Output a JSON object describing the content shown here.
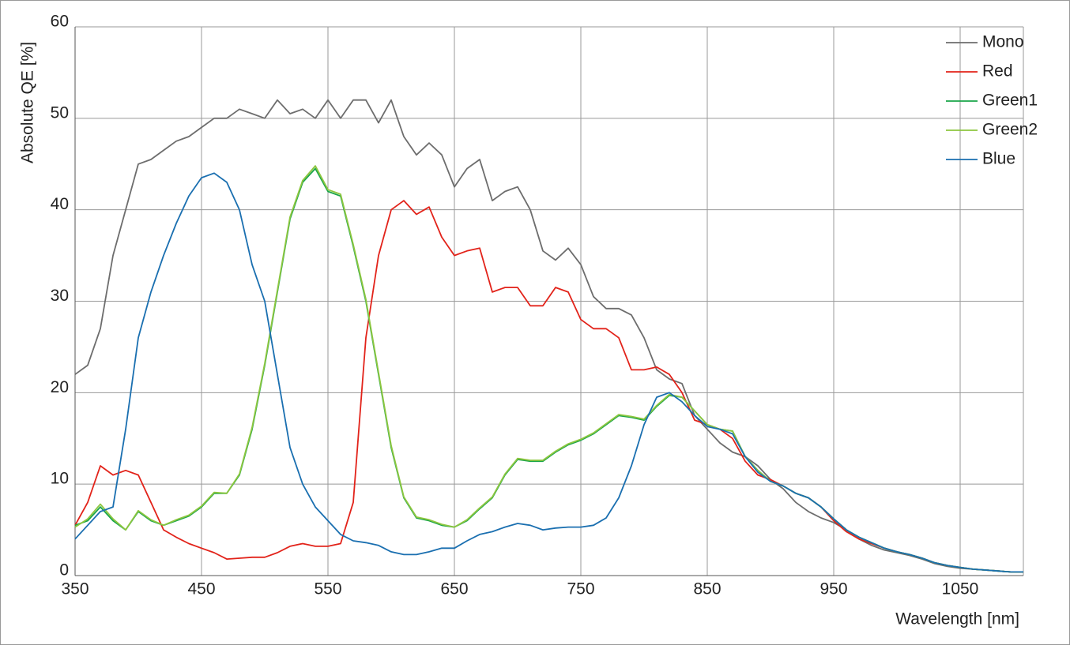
{
  "chart_data": {
    "type": "line",
    "y_label": "Absolute QE [%]",
    "x_label": "Wavelength [nm]",
    "x": [
      350,
      360,
      370,
      380,
      390,
      400,
      410,
      420,
      430,
      440,
      450,
      460,
      470,
      480,
      490,
      500,
      510,
      520,
      530,
      540,
      550,
      560,
      570,
      580,
      590,
      600,
      610,
      620,
      630,
      640,
      650,
      660,
      670,
      680,
      690,
      700,
      710,
      720,
      730,
      740,
      750,
      760,
      770,
      780,
      790,
      800,
      810,
      820,
      830,
      840,
      850,
      860,
      870,
      880,
      890,
      900,
      910,
      920,
      930,
      940,
      950,
      960,
      970,
      980,
      990,
      1000,
      1010,
      1020,
      1030,
      1040,
      1050,
      1060,
      1070,
      1080,
      1090,
      1100
    ],
    "series": [
      {
        "name": "Mono",
        "color": "#6d6d6d",
        "values": [
          22,
          23,
          27,
          35,
          40,
          45,
          45.5,
          46.5,
          47.5,
          48,
          49,
          50,
          50,
          51,
          50.5,
          50,
          52,
          50.5,
          51,
          50,
          52,
          50,
          52,
          52,
          49.5,
          52,
          48,
          46,
          47.3,
          46,
          42.5,
          44.5,
          45.5,
          41,
          42,
          42.5,
          40,
          35.5,
          34.5,
          35.8,
          34,
          30.5,
          29.2,
          29.2,
          28.5,
          26,
          22.5,
          21.5,
          21,
          17.5,
          16,
          14.5,
          13.5,
          13,
          12,
          10.5,
          9.5,
          8,
          7,
          6.3,
          5.8,
          5,
          4,
          3.3,
          2.8,
          2.5,
          2.2,
          1.8,
          1.3,
          1,
          0.8,
          0.7,
          0.6,
          0.5,
          0.4,
          0.4
        ]
      },
      {
        "name": "Red",
        "color": "#e2231a",
        "values": [
          5.5,
          8,
          12,
          11,
          11.5,
          11,
          8,
          5,
          4.2,
          3.5,
          3,
          2.5,
          1.8,
          1.9,
          2,
          2,
          2.5,
          3.2,
          3.5,
          3.2,
          3.2,
          3.5,
          8,
          26,
          35,
          40,
          41,
          39.5,
          40.3,
          37,
          35,
          35.5,
          35.8,
          31,
          31.5,
          31.5,
          29.5,
          29.5,
          31.5,
          31,
          28,
          27,
          27,
          26,
          22.5,
          22.5,
          22.8,
          22,
          20,
          17,
          16.5,
          16,
          15,
          12.5,
          11,
          10.5,
          9.8,
          9,
          8.5,
          7.5,
          6,
          4.8,
          4,
          3.5,
          3,
          2.6,
          2.3,
          1.9,
          1.4,
          1.1,
          0.9,
          0.7,
          0.6,
          0.5,
          0.4,
          0.4
        ]
      },
      {
        "name": "Green1",
        "color": "#1aa54a",
        "values": [
          5.5,
          6,
          7.5,
          6,
          5,
          7,
          6,
          5.5,
          6,
          6.5,
          7.5,
          9,
          9,
          11,
          16,
          23,
          31,
          39,
          43,
          44.5,
          42,
          41.5,
          36,
          30,
          22,
          14,
          8.5,
          6.3,
          6,
          5.5,
          5.3,
          6,
          7.3,
          8.5,
          11,
          12.7,
          12.5,
          12.5,
          13.5,
          14.3,
          14.8,
          15.5,
          16.5,
          17.5,
          17.3,
          17,
          18.5,
          19.7,
          19.5,
          18,
          16.5,
          16,
          15.8,
          13,
          11.5,
          10.3,
          9.8,
          9,
          8.5,
          7.5,
          6.2,
          5,
          4.2,
          3.6,
          3,
          2.6,
          2.3,
          1.9,
          1.4,
          1.1,
          0.9,
          0.7,
          0.6,
          0.5,
          0.4,
          0.4
        ]
      },
      {
        "name": "Green2",
        "color": "#8dc63f",
        "values": [
          5.3,
          6.2,
          7.8,
          6.2,
          5,
          7.1,
          6.1,
          5.5,
          6.1,
          6.6,
          7.6,
          9.1,
          9,
          11.1,
          16.2,
          23.2,
          31.2,
          39.2,
          43.2,
          44.8,
          42.2,
          41.7,
          36.2,
          30.2,
          22.2,
          14.2,
          8.6,
          6.4,
          6.1,
          5.6,
          5.3,
          6.1,
          7.4,
          8.6,
          11.1,
          12.8,
          12.6,
          12.6,
          13.6,
          14.4,
          14.9,
          15.6,
          16.6,
          17.6,
          17.4,
          17.1,
          18.6,
          19.8,
          19.5,
          18,
          16.5,
          16,
          15.8,
          13,
          11.5,
          10.3,
          9.8,
          9,
          8.5,
          7.5,
          6.2,
          5,
          4.2,
          3.6,
          3,
          2.6,
          2.3,
          1.9,
          1.4,
          1.1,
          0.9,
          0.7,
          0.6,
          0.5,
          0.4,
          0.4
        ]
      },
      {
        "name": "Blue",
        "color": "#1a6fb0",
        "values": [
          4,
          5.5,
          7,
          7.5,
          16,
          26,
          31,
          35,
          38.5,
          41.5,
          43.5,
          44,
          43,
          40,
          34,
          30,
          22,
          14,
          10,
          7.5,
          6,
          4.5,
          3.8,
          3.6,
          3.3,
          2.6,
          2.3,
          2.3,
          2.6,
          3,
          3,
          3.8,
          4.5,
          4.8,
          5.3,
          5.7,
          5.5,
          5,
          5.2,
          5.3,
          5.3,
          5.5,
          6.3,
          8.5,
          12,
          16.5,
          19.5,
          20,
          19,
          17.5,
          16.3,
          16,
          15.5,
          13,
          11.3,
          10.3,
          9.8,
          9,
          8.5,
          7.5,
          6.2,
          5,
          4.2,
          3.6,
          3,
          2.6,
          2.3,
          1.9,
          1.4,
          1.1,
          0.9,
          0.7,
          0.6,
          0.5,
          0.4,
          0.4
        ]
      }
    ],
    "xlim": [
      350,
      1100
    ],
    "xticks": [
      350,
      450,
      550,
      650,
      750,
      850,
      950,
      1050
    ],
    "ylim": [
      0,
      60
    ],
    "yticks": [
      0,
      10,
      20,
      30,
      40,
      50,
      60
    ],
    "grid": true,
    "legend": "top-right"
  }
}
